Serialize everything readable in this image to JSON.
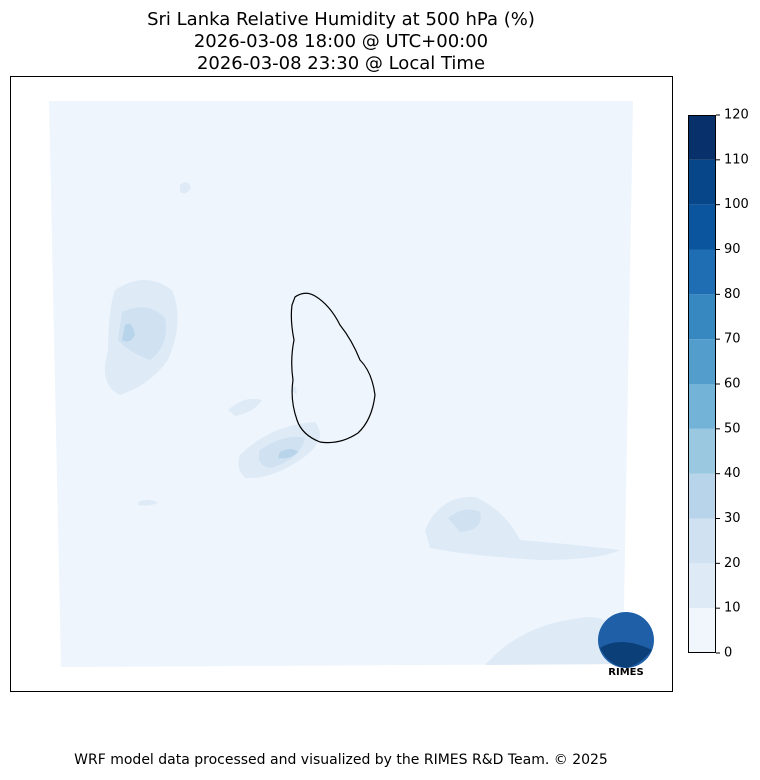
{
  "chart_data": {
    "type": "map",
    "title": [
      "Sri Lanka Relative Humidity at 500 hPa (%)",
      "2026-03-08 18:00 @ UTC+00:00",
      "2026-03-08 23:30 @ Local Time"
    ],
    "ylim": [
      0,
      120
    ],
    "yticks": [
      0,
      10,
      20,
      30,
      40,
      50,
      60,
      70,
      80,
      90,
      100,
      110,
      120
    ],
    "colors": [
      "#f0f6fc",
      "#deebf7",
      "#d0e1f2",
      "#b7d4ea",
      "#9ac8e0",
      "#73b3d8",
      "#529dcc",
      "#3787c0",
      "#1f6eb3",
      "#0b559f",
      "#08468a",
      "#08306b"
    ],
    "logo": "RIMES",
    "footer": "WRF model data processed and visualized by the RIMES R&D Team. © 2025"
  }
}
